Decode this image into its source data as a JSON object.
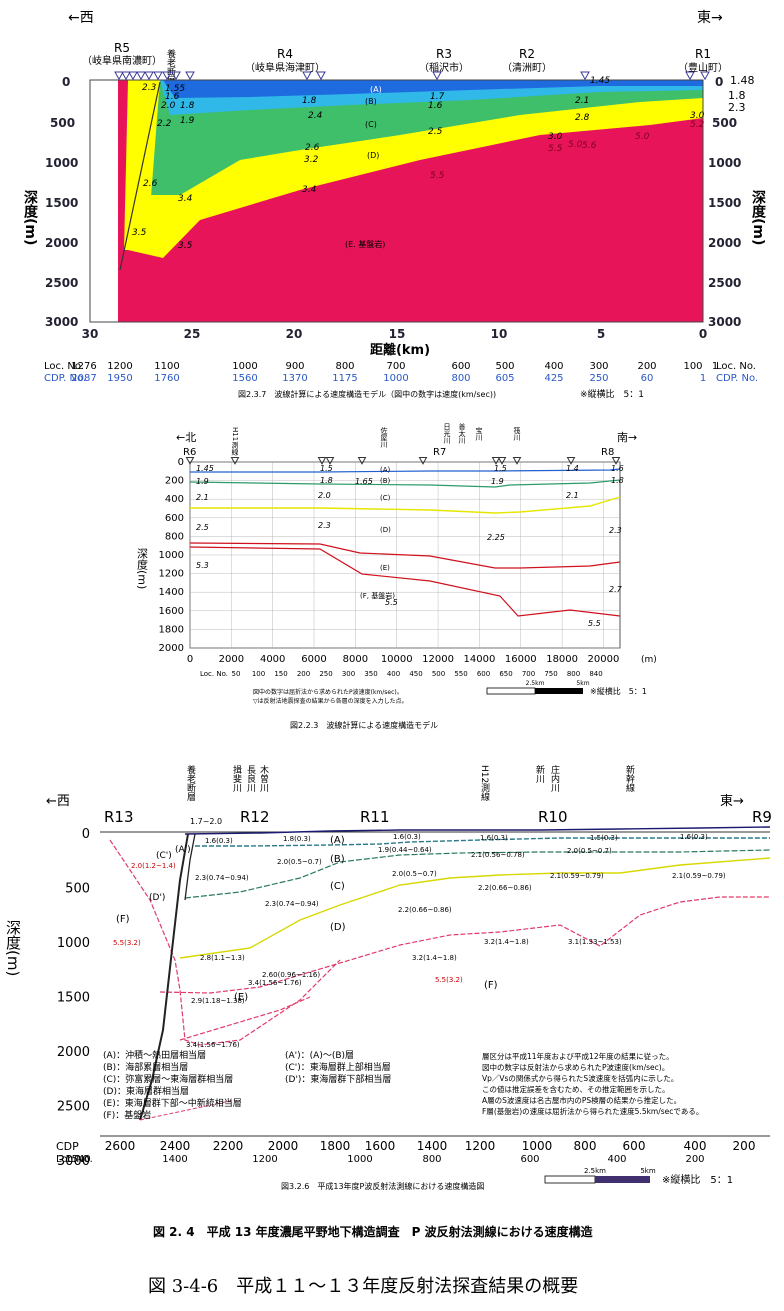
{
  "fig1": {
    "dir_west": "←西",
    "dir_east": "東→",
    "stations": [
      {
        "id": "R5",
        "place": "（岐阜県南濃町）"
      },
      {
        "id": "R4",
        "place": "（岐阜県海津町）"
      },
      {
        "id": "R3",
        "place": "（稲沢市）"
      },
      {
        "id": "R2",
        "place": "（清洲町）"
      },
      {
        "id": "R1",
        "place": "（豊山町）"
      }
    ],
    "fault": "養老断層",
    "y_label": "深度(m)",
    "x_label": "距離(km)",
    "y_ticks": [
      "0",
      "500",
      "1000",
      "1500",
      "2000",
      "2500",
      "3000"
    ],
    "x_ticks": [
      "30",
      "25",
      "20",
      "15",
      "10",
      "5",
      "0"
    ],
    "loc_label": "Loc. No.",
    "cdp_label": "CDP. No.",
    "loc_values": [
      "1276",
      "1200",
      "1100",
      "1000",
      "900",
      "800",
      "700",
      "600",
      "500",
      "400",
      "300",
      "200",
      "100",
      "1"
    ],
    "cdp_values": [
      "2087",
      "1950",
      "1760",
      "1560",
      "1370",
      "1175",
      "1000",
      "800",
      "605",
      "425",
      "250",
      "60",
      "1"
    ],
    "layers": [
      "(A)",
      "(B)",
      "(C)",
      "(D)",
      "(E. 基盤岩)"
    ],
    "right_values": [
      "1.48",
      "1.8",
      "2.3"
    ],
    "velocities": [
      "1.55",
      "1.6",
      "2.0",
      "1.8",
      "2.2",
      "1.9",
      "2.4",
      "2.6",
      "3.2",
      "3.4",
      "3.4",
      "3.5",
      "3.5",
      "2.6",
      "2.5",
      "2.8",
      "2.1",
      "3.0",
      "5.0",
      "5.5",
      "5.5",
      "5.0",
      "5.6",
      "2.3",
      "1.8",
      "1.7",
      "1.45",
      "1.6",
      "3.0",
      "5.2"
    ],
    "caption": "図2.3.7　波線計算による速度構造モデル（図中の数字は速度(km/sec))",
    "ratio": "※縦横比　5：1"
  },
  "fig2": {
    "dir_north": "←北",
    "dir_south": "南→",
    "r6": "R6",
    "r7": "R7",
    "r8": "R8",
    "rivers": [
      "H11測線",
      "佐屋川",
      "日光川",
      "善太川",
      "宝川",
      "筏川"
    ],
    "y_label": "深度(m)",
    "y_ticks": [
      "0",
      "200",
      "400",
      "600",
      "800",
      "1000",
      "1200",
      "1400",
      "1600",
      "1800",
      "2000"
    ],
    "x_ticks": [
      "0",
      "2000",
      "4000",
      "6000",
      "8000",
      "10000",
      "12000",
      "14000",
      "16000",
      "18000",
      "20000"
    ],
    "x_unit": "(m)",
    "loc_label": "Loc. No.",
    "loc_values": [
      "50",
      "100",
      "150",
      "200",
      "250",
      "300",
      "350",
      "400",
      "450",
      "500",
      "550",
      "600",
      "650",
      "700",
      "750",
      "800",
      "840"
    ],
    "layers": [
      "(A)",
      "(B)",
      "(C)",
      "(D)",
      "(E)",
      "(F, 基盤岩)"
    ],
    "velocities": [
      "1.45",
      "1.5",
      "1.5",
      "1.4",
      "1.6",
      "1.9",
      "1.8",
      "1.65",
      "1.9",
      "1.8",
      "2.1",
      "2.0",
      "2.1",
      "2.5",
      "2.3",
      "2.25",
      "2.3",
      "5.3",
      "2.7",
      "5.5",
      "5.5"
    ],
    "notes": [
      "図中の数字は屈折法から求められたP波速度(km/sec)。",
      "▽は反射法地震探査の結果から各層の深度を入力した点。"
    ],
    "scale_a": "2.5km",
    "scale_b": "5km",
    "ratio": "※縦横比　5：1",
    "caption": "図2.2.3　波線計算による速度構造モデル"
  },
  "fig3": {
    "dir_west": "←西",
    "dir_east": "東→",
    "stations": [
      "R13",
      "R12",
      "R11",
      "R10",
      "R9"
    ],
    "rivers": [
      "養老断層",
      "揖斐川",
      "長良川",
      "木曽川",
      "H12測線",
      "新川",
      "庄内川",
      "新幹線"
    ],
    "top_label": "1.7~2.0",
    "y_label": "深度(m)",
    "y_ticks": [
      "0",
      "500",
      "1000",
      "1500",
      "2000",
      "2500",
      "3000"
    ],
    "cdp_label": "CDP",
    "loc_label": "Loc.No.",
    "cdp_values": [
      "2600",
      "2400",
      "2200",
      "2000",
      "1800",
      "1600",
      "1400",
      "1200",
      "1000",
      "800",
      "600",
      "400",
      "200"
    ],
    "loc_values": [
      "1540",
      "1400",
      "1200",
      "1000",
      "800",
      "600",
      "400",
      "200"
    ],
    "layers": [
      "(A)",
      "(B)",
      "(C)",
      "(D)",
      "(E)",
      "(F)",
      "(F)",
      "(C')",
      "(A')",
      "(D')"
    ],
    "velocities": [
      "1.6(0.3)",
      "1.8(0.3)",
      "1.6(0.3)",
      "1.6(0.3)",
      "1.5(0.3)",
      "1.6(0.3)",
      "1.9(0.44~0.64)",
      "2.1(0.56~0.78)",
      "2.0(0.5~0.7)",
      "2.0(0.5~0.7)",
      "2.0(0.5~0.7)",
      "2.3(0.74~0.94)",
      "2.3(0.74~0.94)",
      "2.2(0.66~0.86)",
      "2.1(0.59~0.79)",
      "2.1(0.59~0.79)",
      "2.2(0.66~0.86)",
      "3.2(1.4~1.8)",
      "3.2(1.4~1.8)",
      "3.1(1.33~1.53)",
      "2.8(1.1~1.3)",
      "2.60(0.96~1.16)",
      "2.9(1.18~1.38)",
      "3.4(1.56~1.76)",
      "3.4(1.56~1.76)",
      "5.5(3.2)",
      "5.5(3.2)",
      "2.0(1.2~1.4)"
    ],
    "legend_left": [
      "(A)：沖積～熱田層相当層",
      "(B)：海部累層相当層",
      "(C)：弥富累層～東海層群相当層",
      "(D)：東海層群相当層",
      "(E)：東海層群下部～中新統相当層",
      "(F)：基盤岩"
    ],
    "legend_mid": [
      "(A')：(A)～(B)層",
      "(C')：東海層群上部相当層",
      "(D')：東海層群下部相当層"
    ],
    "notes": [
      "層区分は平成11年度および平成12年度の結果に従った。",
      "図中の数字は反射法から求められたP波速度(km/sec)。",
      "Vp／Vsの関係式から得られたS波速度を括弧内に示した。",
      "この値は推定誤差を含むため、その推定範囲を示した。",
      "A層のS波速度は名古屋市内のPS検層の結果から推定した。",
      "F層(基盤岩)の速度は屈折法から得られた速度5.5km/secである。"
    ],
    "scale_a": "2.5km",
    "scale_b": "5km",
    "ratio": "※縦横比　5：1",
    "caption": "図3.2.6　平成13年度P波反射法測線における速度構造図"
  },
  "caption_main": "図 2. 4　平成 13 年度濃尾平野地下構造調査　P 波反射法測線における速度構造",
  "caption_bottom": "図 3-4-6　平成１１～１３年度反射法探査結果の概要",
  "colors": {
    "A": "#1e6be0",
    "B": "#2fb8e8",
    "C": "#3fbf6a",
    "D": "#ffff00",
    "E": "#e8145a",
    "red": "#d0101c"
  }
}
